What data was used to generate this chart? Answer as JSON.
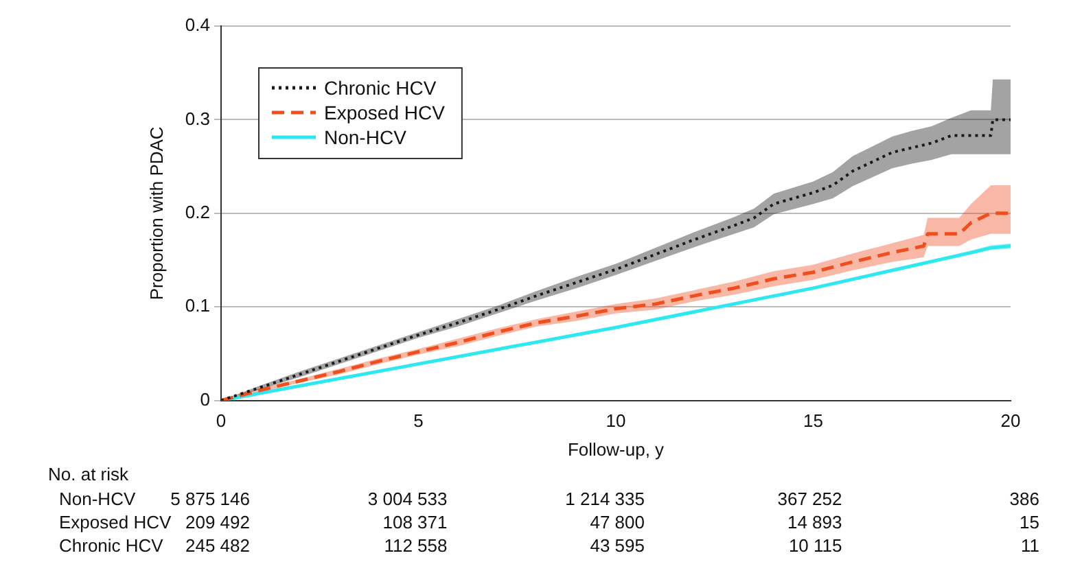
{
  "chart_data": {
    "type": "line",
    "xlabel": "Follow-up, y",
    "ylabel": "Proportion with PDAC",
    "xlim": [
      0,
      20
    ],
    "xticks": [
      0,
      5,
      10,
      15,
      20
    ],
    "ylim": [
      0,
      0.4
    ],
    "yticks": [
      0,
      0.1,
      0.2,
      0.3,
      0.4
    ],
    "grid": "y",
    "legend": "top left",
    "series": [
      {
        "name": "Chronic HCV",
        "color": "#1a1a1a",
        "line_style": "dotted",
        "x": [
          0,
          1,
          2,
          3,
          4,
          5,
          6,
          7,
          8,
          9,
          10,
          11,
          12,
          13,
          13.5,
          14,
          15,
          15.5,
          16,
          17,
          17.5,
          18,
          18.5,
          19,
          19.5,
          19.55,
          20
        ],
        "values": [
          0,
          0.014,
          0.028,
          0.042,
          0.056,
          0.07,
          0.083,
          0.097,
          0.112,
          0.126,
          0.14,
          0.156,
          0.172,
          0.187,
          0.195,
          0.21,
          0.222,
          0.23,
          0.245,
          0.265,
          0.27,
          0.275,
          0.283,
          0.283,
          0.283,
          0.3,
          0.3
        ],
        "lower": [
          0,
          0.012,
          0.025,
          0.039,
          0.053,
          0.067,
          0.079,
          0.093,
          0.107,
          0.12,
          0.134,
          0.149,
          0.164,
          0.178,
          0.185,
          0.199,
          0.21,
          0.216,
          0.229,
          0.248,
          0.253,
          0.257,
          0.263,
          0.263,
          0.263,
          0.263,
          0.263
        ],
        "upper": [
          0,
          0.016,
          0.031,
          0.045,
          0.059,
          0.073,
          0.087,
          0.101,
          0.117,
          0.132,
          0.146,
          0.163,
          0.18,
          0.196,
          0.205,
          0.221,
          0.234,
          0.244,
          0.261,
          0.282,
          0.288,
          0.293,
          0.302,
          0.31,
          0.31,
          0.343,
          0.343
        ]
      },
      {
        "name": "Exposed HCV",
        "color": "#f04e1e",
        "line_style": "dashed",
        "x": [
          0,
          1,
          2,
          3,
          4,
          5,
          6,
          7,
          8,
          9,
          10,
          11,
          12,
          13,
          14,
          15,
          16,
          17,
          17.8,
          17.9,
          18.7,
          19,
          19.5,
          20
        ],
        "values": [
          0,
          0.011,
          0.021,
          0.031,
          0.042,
          0.052,
          0.062,
          0.073,
          0.083,
          0.09,
          0.098,
          0.103,
          0.112,
          0.12,
          0.13,
          0.137,
          0.148,
          0.158,
          0.165,
          0.178,
          0.178,
          0.19,
          0.2,
          0.2
        ],
        "lower": [
          0,
          0.009,
          0.019,
          0.028,
          0.039,
          0.049,
          0.058,
          0.069,
          0.079,
          0.085,
          0.093,
          0.097,
          0.106,
          0.113,
          0.122,
          0.129,
          0.139,
          0.148,
          0.153,
          0.165,
          0.165,
          0.172,
          0.178,
          0.178
        ],
        "upper": [
          0,
          0.013,
          0.023,
          0.034,
          0.045,
          0.055,
          0.066,
          0.077,
          0.087,
          0.095,
          0.103,
          0.109,
          0.118,
          0.127,
          0.138,
          0.145,
          0.157,
          0.168,
          0.177,
          0.195,
          0.195,
          0.21,
          0.23,
          0.23
        ]
      },
      {
        "name": "Non-HCV",
        "color": "#2ee8f0",
        "line_style": "solid",
        "x": [
          0,
          5,
          10,
          15,
          19,
          19.5,
          20
        ],
        "values": [
          0,
          0.039,
          0.078,
          0.12,
          0.158,
          0.163,
          0.165
        ],
        "lower": [
          0,
          0.038,
          0.077,
          0.119,
          0.156,
          0.161,
          0.162
        ],
        "upper": [
          0,
          0.04,
          0.079,
          0.121,
          0.16,
          0.166,
          0.168
        ]
      }
    ],
    "annotations": [
      "No. at risk",
      "Non-HCV",
      "5 875 146",
      "3 004 533",
      "1 214 335",
      "367 252",
      "386",
      "Exposed HCV",
      "209 492",
      "108 371",
      "47 800",
      "14 893",
      "15",
      "Chronic HCV",
      "245 482",
      "112 558",
      "43 595",
      "10 115",
      "11"
    ]
  }
}
